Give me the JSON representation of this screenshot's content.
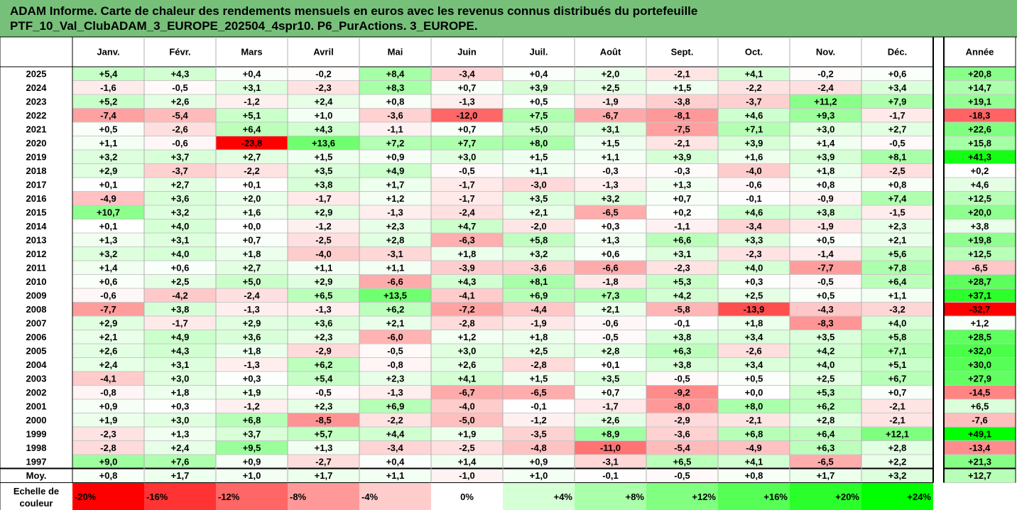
{
  "title": {
    "line1": "ADAM Informe. Carte de chaleur des rendements mensuels en euros avec les revenus connus distribués du portefeuille",
    "line2": "PTF_10_Val_ClubADAM_3_EUROPE_202504_4spr10. P6_PurActions. 3_EUROPE."
  },
  "chart_data": {
    "type": "heatmap",
    "columns": [
      "Janv.",
      "Févr.",
      "Mars",
      "Avril",
      "Mai",
      "Juin",
      "Juil.",
      "Août",
      "Sept.",
      "Oct.",
      "Nov.",
      "Déc."
    ],
    "annual_header": "Année",
    "rows": [
      {
        "year": "2025",
        "months": [
          "+5,4",
          "+4,3",
          "+0,4",
          "-0,2",
          "+8,4",
          "-3,4",
          "+0,4",
          "+2,0",
          "-2,1",
          "+4,1",
          "-0,2",
          "+0,6"
        ],
        "annual": "+20,8"
      },
      {
        "year": "2024",
        "months": [
          "-1,6",
          "-0,5",
          "+3,1",
          "-2,3",
          "+8,3",
          "+0,7",
          "+3,9",
          "+2,5",
          "+1,5",
          "-2,2",
          "-2,4",
          "+3,4"
        ],
        "annual": "+14,7"
      },
      {
        "year": "2023",
        "months": [
          "+5,2",
          "+2,6",
          "-1,2",
          "+2,4",
          "+0,8",
          "-1,3",
          "+0,5",
          "-1,9",
          "-3,8",
          "-3,7",
          "+11,2",
          "+7,9"
        ],
        "annual": "+19,1"
      },
      {
        "year": "2022",
        "months": [
          "-7,4",
          "-5,4",
          "+5,1",
          "+1,0",
          "-3,6",
          "-12,0",
          "+7,5",
          "-6,7",
          "-8,1",
          "+4,6",
          "+9,3",
          "-1,7"
        ],
        "annual": "-18,3"
      },
      {
        "year": "2021",
        "months": [
          "+0,5",
          "-2,6",
          "+6,4",
          "+4,3",
          "-1,1",
          "+0,7",
          "+5,0",
          "+3,1",
          "-7,5",
          "+7,1",
          "+3,0",
          "+2,7"
        ],
        "annual": "+22,6"
      },
      {
        "year": "2020",
        "months": [
          "+1,1",
          "-0,6",
          "-23,8",
          "+13,6",
          "+7,2",
          "+7,7",
          "+8,0",
          "+1,5",
          "-2,1",
          "+3,9",
          "+1,4",
          "-0,5"
        ],
        "annual": "+15,8"
      },
      {
        "year": "2019",
        "months": [
          "+3,2",
          "+3,7",
          "+2,7",
          "+1,5",
          "+0,9",
          "+3,0",
          "+1,5",
          "+1,1",
          "+3,9",
          "+1,6",
          "+3,9",
          "+8,1"
        ],
        "annual": "+41,3"
      },
      {
        "year": "2018",
        "months": [
          "+2,9",
          "-3,7",
          "-2,2",
          "+3,5",
          "+4,9",
          "-0,5",
          "+1,1",
          "-0,3",
          "-0,3",
          "-4,0",
          "+1,8",
          "-2,5"
        ],
        "annual": "+0,2"
      },
      {
        "year": "2017",
        "months": [
          "+0,1",
          "+2,7",
          "+0,1",
          "+3,8",
          "+1,7",
          "-1,7",
          "-3,0",
          "-1,3",
          "+1,3",
          "-0,6",
          "+0,8",
          "+0,8"
        ],
        "annual": "+4,6"
      },
      {
        "year": "2016",
        "months": [
          "-4,9",
          "+3,6",
          "+2,0",
          "-1,7",
          "+1,2",
          "-1,7",
          "+3,5",
          "+3,2",
          "+0,7",
          "-0,1",
          "-0,9",
          "+7,4"
        ],
        "annual": "+12,5"
      },
      {
        "year": "2015",
        "months": [
          "+10,7",
          "+3,2",
          "+1,6",
          "+2,9",
          "-1,3",
          "-2,4",
          "+2,1",
          "-6,5",
          "+0,2",
          "+4,6",
          "+3,8",
          "-1,5"
        ],
        "annual": "+20,0"
      },
      {
        "year": "2014",
        "months": [
          "+0,1",
          "+4,0",
          "+0,0",
          "-1,2",
          "+2,3",
          "+4,7",
          "-2,0",
          "+0,3",
          "-1,1",
          "-3,4",
          "-1,9",
          "+2,3"
        ],
        "annual": "+3,8"
      },
      {
        "year": "2013",
        "months": [
          "+1,3",
          "+3,1",
          "+0,7",
          "-2,5",
          "+2,8",
          "-6,3",
          "+5,8",
          "+1,3",
          "+6,6",
          "+3,3",
          "+0,5",
          "+2,1"
        ],
        "annual": "+19,8"
      },
      {
        "year": "2012",
        "months": [
          "+3,2",
          "+4,0",
          "+1,8",
          "-4,0",
          "-3,1",
          "+1,8",
          "+3,2",
          "+0,6",
          "+3,1",
          "-2,3",
          "-1,4",
          "+5,6"
        ],
        "annual": "+12,5"
      },
      {
        "year": "2011",
        "months": [
          "+1,4",
          "+0,6",
          "+2,7",
          "+1,1",
          "+1,1",
          "-3,9",
          "-3,6",
          "-6,6",
          "-2,3",
          "+4,0",
          "-7,7",
          "+7,8"
        ],
        "annual": "-6,5"
      },
      {
        "year": "2010",
        "months": [
          "+0,6",
          "+2,5",
          "+5,0",
          "+2,9",
          "-6,6",
          "+4,3",
          "+8,1",
          "-1,8",
          "+5,3",
          "+0,3",
          "-0,5",
          "+6,4"
        ],
        "annual": "+28,7"
      },
      {
        "year": "2009",
        "months": [
          "-0,6",
          "-4,2",
          "-2,4",
          "+6,5",
          "+13,5",
          "-4,1",
          "+6,9",
          "+7,3",
          "+4,2",
          "+2,5",
          "+0,5",
          "+1,1"
        ],
        "annual": "+37,1"
      },
      {
        "year": "2008",
        "months": [
          "-7,7",
          "+3,8",
          "-1,3",
          "-1,3",
          "+6,2",
          "-7,2",
          "-4,4",
          "+2,1",
          "-5,8",
          "-13,9",
          "-4,3",
          "-3,2"
        ],
        "annual": "-32,7"
      },
      {
        "year": "2007",
        "months": [
          "+2,9",
          "-1,7",
          "+2,9",
          "+3,6",
          "+2,1",
          "-2,8",
          "-1,9",
          "-0,6",
          "-0,1",
          "+1,8",
          "-8,3",
          "+4,0"
        ],
        "annual": "+1,2"
      },
      {
        "year": "2006",
        "months": [
          "+2,1",
          "+4,9",
          "+3,6",
          "+2,3",
          "-6,0",
          "+1,2",
          "+1,8",
          "-0,5",
          "+3,8",
          "+3,4",
          "+3,5",
          "+5,8"
        ],
        "annual": "+28,5"
      },
      {
        "year": "2005",
        "months": [
          "+2,6",
          "+4,3",
          "+1,8",
          "-2,9",
          "-0,5",
          "+3,0",
          "+2,5",
          "+2,8",
          "+6,3",
          "-2,6",
          "+4,2",
          "+7,1"
        ],
        "annual": "+32,0"
      },
      {
        "year": "2004",
        "months": [
          "+2,4",
          "+3,1",
          "-1,3",
          "+6,2",
          "-0,8",
          "+2,6",
          "-2,8",
          "+0,1",
          "+3,8",
          "+3,4",
          "+4,0",
          "+5,1"
        ],
        "annual": "+30,0"
      },
      {
        "year": "2003",
        "months": [
          "-4,1",
          "+3,0",
          "+0,3",
          "+5,4",
          "+2,3",
          "+4,1",
          "+1,5",
          "+3,5",
          "-0,5",
          "+0,5",
          "+2,5",
          "+6,7"
        ],
        "annual": "+27,9"
      },
      {
        "year": "2002",
        "months": [
          "-0,8",
          "+1,8",
          "+1,9",
          "-0,5",
          "-1,3",
          "-6,7",
          "-6,5",
          "+0,7",
          "-9,2",
          "+0,0",
          "+5,3",
          "+0,7"
        ],
        "annual": "-14,5"
      },
      {
        "year": "2001",
        "months": [
          "+0,9",
          "+0,3",
          "-1,2",
          "+2,3",
          "+6,9",
          "-4,0",
          "-0,1",
          "-1,7",
          "-8,0",
          "+8,0",
          "+6,2",
          "-2,1"
        ],
        "annual": "+6,5"
      },
      {
        "year": "2000",
        "months": [
          "+1,9",
          "+3,0",
          "+6,8",
          "-8,5",
          "-2,2",
          "-5,0",
          "-1,2",
          "+2,6",
          "-2,9",
          "-2,1",
          "+2,8",
          "-2,1"
        ],
        "annual": "-7,6"
      },
      {
        "year": "1999",
        "months": [
          "-2,3",
          "+1,3",
          "+3,7",
          "+5,7",
          "+4,4",
          "+1,9",
          "-3,5",
          "+8,9",
          "-3,6",
          "+6,8",
          "+6,4",
          "+12,1"
        ],
        "annual": "+49,1"
      },
      {
        "year": "1998",
        "months": [
          "-2,8",
          "+2,4",
          "+9,5",
          "+1,3",
          "-3,4",
          "-2,5",
          "-4,8",
          "-11,0",
          "-5,4",
          "-4,9",
          "+6,3",
          "+2,8"
        ],
        "annual": "-13,4"
      },
      {
        "year": "1997",
        "months": [
          "+9,0",
          "+7,6",
          "+0,9",
          "-2,7",
          "+0,4",
          "+1,4",
          "+0,9",
          "-3,1",
          "+6,5",
          "+4,1",
          "-6,5",
          "+2,2"
        ],
        "annual": "+21,3"
      }
    ],
    "average": {
      "label": "Moy.",
      "months": [
        "+0,8",
        "+1,7",
        "+1,0",
        "+1,7",
        "+1,1",
        "-1,0",
        "+1,0",
        "-0,1",
        "-0,5",
        "+0,8",
        "+1,7",
        "+3,2"
      ],
      "annual": "+12,7"
    },
    "scale": {
      "label_line1": "Echelle de",
      "label_line2": "couleur",
      "steps": [
        "-20%",
        "-16%",
        "-12%",
        "-8%",
        "-4%",
        "0%",
        "+4%",
        "+8%",
        "+12%",
        "+16%",
        "+20%",
        "+24%"
      ],
      "values": [
        -20,
        -16,
        -12,
        -8,
        -4,
        0,
        4,
        8,
        12,
        16,
        20,
        24
      ],
      "max_positive": 24,
      "max_negative": -20
    },
    "colors": {
      "strong_positive": "#00ff00",
      "strong_negative": "#ff0000",
      "neutral": "#ffffff",
      "title_bar": "#76c07a"
    }
  }
}
